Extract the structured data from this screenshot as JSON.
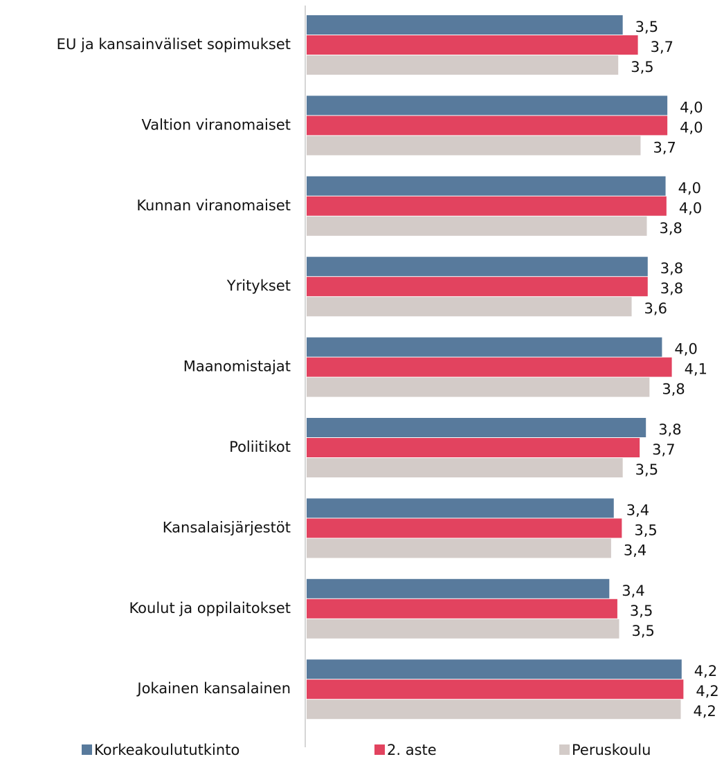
{
  "chart_data": {
    "type": "hbar",
    "categories": [
      "EU ja kansainväliset sopimukset",
      "Valtion viranomaiset",
      "Kunnan viranomaiset",
      "Yritykset",
      "Maanomistajat",
      "Poliitikot",
      "Kansalaisjärjestöt",
      "Koulut ja oppilaitokset",
      "Jokainen kansalainen"
    ],
    "series": [
      {
        "name": "Korkeakoulututkinto",
        "color": "#587a9c",
        "values": [
          3.54,
          4.04,
          4.02,
          3.82,
          3.98,
          3.8,
          3.44,
          3.39,
          4.2
        ],
        "value_labels": [
          "3,5",
          "4,0",
          "4,0",
          "3,8",
          "4,0",
          "3,8",
          "3,4",
          "3,4",
          "4,2"
        ]
      },
      {
        "name": "2. aste",
        "color": "#e2435f",
        "values": [
          3.71,
          4.04,
          4.03,
          3.82,
          4.09,
          3.73,
          3.53,
          3.48,
          4.22
        ],
        "value_labels": [
          "3,7",
          "4,0",
          "4,0",
          "3,8",
          "4,1",
          "3,7",
          "3,5",
          "3,5",
          "4,2"
        ]
      },
      {
        "name": "Peruskoulu",
        "color": "#d3cbc8",
        "values": [
          3.49,
          3.74,
          3.81,
          3.64,
          3.84,
          3.54,
          3.41,
          3.5,
          4.19
        ],
        "value_labels": [
          "3,5",
          "3,7",
          "3,8",
          "3,6",
          "3,8",
          "3,5",
          "3,4",
          "3,5",
          "4,2"
        ]
      }
    ],
    "xlim": [
      0,
      4.5
    ],
    "legend": "bottom"
  }
}
